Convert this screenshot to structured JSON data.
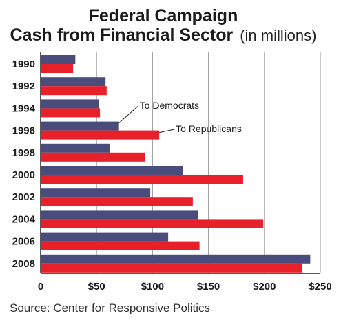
{
  "chart_data": {
    "type": "bar",
    "orientation": "horizontal",
    "title_line1": "Federal Campaign",
    "title_line2": "Cash from Financial Sector",
    "title_units": "(in millions)",
    "categories": [
      "1990",
      "1992",
      "1994",
      "1996",
      "1998",
      "2000",
      "2002",
      "2004",
      "2006",
      "2008"
    ],
    "series": [
      {
        "name": "To Democrats",
        "color": "#4a4d7c",
        "values": [
          31,
          58,
          52,
          70,
          62,
          127,
          98,
          141,
          114,
          241
        ]
      },
      {
        "name": "To Republicans",
        "color": "#e8202a",
        "values": [
          29,
          59,
          53,
          106,
          93,
          181,
          136,
          199,
          142,
          234
        ]
      }
    ],
    "xlim": [
      0,
      250
    ],
    "xticks": [
      0,
      50,
      100,
      150,
      200,
      250
    ],
    "xtick_labels": [
      "0",
      "$50",
      "$100",
      "$150",
      "$200",
      "$250"
    ],
    "grid": true,
    "annotations": [
      {
        "text": "To Democrats",
        "series": 0,
        "category": "1996"
      },
      {
        "text": "To Republicans",
        "series": 1,
        "category": "1996"
      }
    ],
    "source": "Source: Center for Responsive Politics"
  }
}
